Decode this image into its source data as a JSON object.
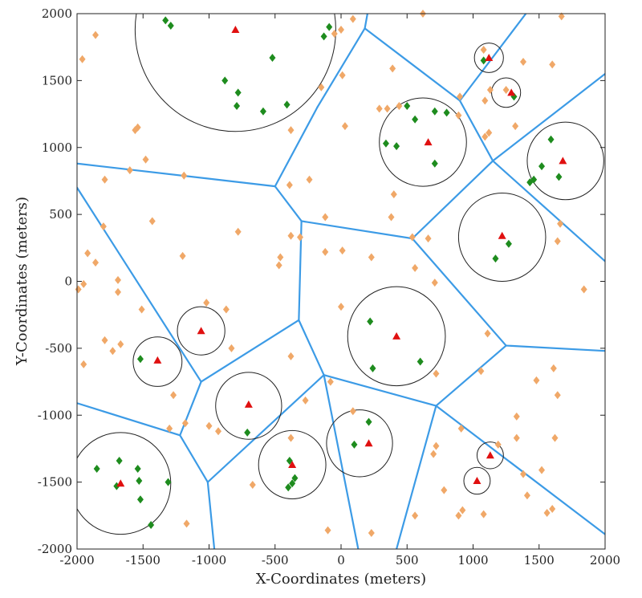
{
  "chart_data": {
    "type": "scatter",
    "title": "",
    "xlabel": "X-Coordinates (meters)",
    "ylabel": "Y-Coordinates (meters)",
    "xlim": [
      -2000,
      2000
    ],
    "ylim": [
      -2000,
      2000
    ],
    "xticks": [
      -2000,
      -1500,
      -1000,
      -500,
      0,
      500,
      1000,
      1500,
      2000
    ],
    "yticks": [
      -2000,
      -1500,
      -1000,
      -500,
      0,
      500,
      1000,
      1500,
      2000
    ],
    "grid": false,
    "legend": "none",
    "colors": {
      "voronoi": "#3c9be6",
      "circle": "#222222",
      "orange": "#f0a868",
      "green": "#1e8c1e",
      "red": "#e01010"
    },
    "voronoi_edges": [
      [
        [
          -2000,
          880
        ],
        [
          -500,
          710
        ]
      ],
      [
        [
          -500,
          710
        ],
        [
          -180,
          1300
        ]
      ],
      [
        [
          -180,
          1300
        ],
        [
          180,
          1890
        ]
      ],
      [
        [
          180,
          1890
        ],
        [
          200,
          2000
        ]
      ],
      [
        [
          180,
          1890
        ],
        [
          900,
          1350
        ]
      ],
      [
        [
          900,
          1350
        ],
        [
          1400,
          2000
        ]
      ],
      [
        [
          900,
          1350
        ],
        [
          1150,
          900
        ]
      ],
      [
        [
          1150,
          900
        ],
        [
          2000,
          1550
        ]
      ],
      [
        [
          1150,
          900
        ],
        [
          2000,
          150
        ]
      ],
      [
        [
          1150,
          900
        ],
        [
          540,
          320
        ]
      ],
      [
        [
          -500,
          710
        ],
        [
          -300,
          450
        ]
      ],
      [
        [
          -300,
          450
        ],
        [
          540,
          320
        ]
      ],
      [
        [
          540,
          320
        ],
        [
          1250,
          -480
        ]
      ],
      [
        [
          1250,
          -480
        ],
        [
          2000,
          -520
        ]
      ],
      [
        [
          1250,
          -480
        ],
        [
          720,
          -930
        ]
      ],
      [
        [
          -2000,
          700
        ],
        [
          -1060,
          -750
        ]
      ],
      [
        [
          -300,
          450
        ],
        [
          -320,
          -290
        ]
      ],
      [
        [
          -320,
          -290
        ],
        [
          -1060,
          -750
        ]
      ],
      [
        [
          -1060,
          -750
        ],
        [
          -1220,
          -1150
        ]
      ],
      [
        [
          -1220,
          -1150
        ],
        [
          -2000,
          -910
        ]
      ],
      [
        [
          -1220,
          -1150
        ],
        [
          -1010,
          -1500
        ]
      ],
      [
        [
          -1010,
          -1500
        ],
        [
          -960,
          -2000
        ]
      ],
      [
        [
          -1010,
          -1500
        ],
        [
          -130,
          -700
        ]
      ],
      [
        [
          -320,
          -290
        ],
        [
          -130,
          -700
        ]
      ],
      [
        [
          -130,
          -700
        ],
        [
          720,
          -930
        ]
      ],
      [
        [
          -130,
          -700
        ],
        [
          130,
          -2000
        ]
      ],
      [
        [
          720,
          -930
        ],
        [
          420,
          -2000
        ]
      ],
      [
        [
          720,
          -930
        ],
        [
          2000,
          -1890
        ]
      ]
    ],
    "circles": [
      {
        "x": -800,
        "y": 1880,
        "r": 760
      },
      {
        "x": 1120,
        "y": 1670,
        "r": 110
      },
      {
        "x": 1250,
        "y": 1410,
        "r": 110
      },
      {
        "x": 620,
        "y": 1040,
        "r": 330
      },
      {
        "x": 1700,
        "y": 900,
        "r": 290
      },
      {
        "x": 1220,
        "y": 330,
        "r": 330
      },
      {
        "x": 420,
        "y": -410,
        "r": 370
      },
      {
        "x": -1060,
        "y": -370,
        "r": 180
      },
      {
        "x": -1390,
        "y": -600,
        "r": 185
      },
      {
        "x": -700,
        "y": -930,
        "r": 250
      },
      {
        "x": -370,
        "y": -1370,
        "r": 255
      },
      {
        "x": 140,
        "y": -1210,
        "r": 250
      },
      {
        "x": 1130,
        "y": -1300,
        "r": 100
      },
      {
        "x": 1030,
        "y": -1490,
        "r": 100
      },
      {
        "x": -1670,
        "y": -1510,
        "r": 380
      }
    ],
    "red_triangles": [
      {
        "x": -800,
        "y": 1880
      },
      {
        "x": 1120,
        "y": 1670
      },
      {
        "x": 1290,
        "y": 1410
      },
      {
        "x": 660,
        "y": 1040
      },
      {
        "x": 1680,
        "y": 900
      },
      {
        "x": 1220,
        "y": 340
      },
      {
        "x": 420,
        "y": -410
      },
      {
        "x": -1060,
        "y": -370
      },
      {
        "x": -1390,
        "y": -590
      },
      {
        "x": -700,
        "y": -920
      },
      {
        "x": -370,
        "y": -1370
      },
      {
        "x": 210,
        "y": -1210
      },
      {
        "x": 1130,
        "y": -1300
      },
      {
        "x": 1030,
        "y": -1490
      },
      {
        "x": -1670,
        "y": -1510
      }
    ],
    "green_diamonds": [
      {
        "x": -1330,
        "y": 1950
      },
      {
        "x": -1290,
        "y": 1910
      },
      {
        "x": -130,
        "y": 1830
      },
      {
        "x": -90,
        "y": 1900
      },
      {
        "x": -520,
        "y": 1670
      },
      {
        "x": -880,
        "y": 1500
      },
      {
        "x": -780,
        "y": 1410
      },
      {
        "x": -790,
        "y": 1310
      },
      {
        "x": -590,
        "y": 1270
      },
      {
        "x": -410,
        "y": 1320
      },
      {
        "x": 1080,
        "y": 1650
      },
      {
        "x": 1310,
        "y": 1380
      },
      {
        "x": 500,
        "y": 1310
      },
      {
        "x": 560,
        "y": 1210
      },
      {
        "x": 710,
        "y": 1270
      },
      {
        "x": 800,
        "y": 1260
      },
      {
        "x": 340,
        "y": 1030
      },
      {
        "x": 420,
        "y": 1010
      },
      {
        "x": 710,
        "y": 880
      },
      {
        "x": 1590,
        "y": 1060
      },
      {
        "x": 1520,
        "y": 860
      },
      {
        "x": 1460,
        "y": 760
      },
      {
        "x": 1430,
        "y": 740
      },
      {
        "x": 1650,
        "y": 780
      },
      {
        "x": 1270,
        "y": 280
      },
      {
        "x": 1170,
        "y": 170
      },
      {
        "x": 220,
        "y": -300
      },
      {
        "x": 600,
        "y": -600
      },
      {
        "x": 240,
        "y": -650
      },
      {
        "x": -1520,
        "y": -580
      },
      {
        "x": -710,
        "y": -1130
      },
      {
        "x": 210,
        "y": -1050
      },
      {
        "x": 100,
        "y": -1220
      },
      {
        "x": -1850,
        "y": -1400
      },
      {
        "x": -1680,
        "y": -1340
      },
      {
        "x": -1540,
        "y": -1400
      },
      {
        "x": -1530,
        "y": -1490
      },
      {
        "x": -1700,
        "y": -1530
      },
      {
        "x": -1310,
        "y": -1500
      },
      {
        "x": -1520,
        "y": -1630
      },
      {
        "x": -1440,
        "y": -1820
      },
      {
        "x": -390,
        "y": -1340
      },
      {
        "x": -350,
        "y": -1470
      },
      {
        "x": -370,
        "y": -1510
      },
      {
        "x": -400,
        "y": -1540
      }
    ],
    "orange_diamonds": [
      {
        "x": -1960,
        "y": 1660
      },
      {
        "x": -1860,
        "y": 1840
      },
      {
        "x": -1560,
        "y": 1130
      },
      {
        "x": -1540,
        "y": 1150
      },
      {
        "x": -1480,
        "y": 910
      },
      {
        "x": -1600,
        "y": 830
      },
      {
        "x": -1790,
        "y": 760
      },
      {
        "x": -1190,
        "y": 790
      },
      {
        "x": -1430,
        "y": 450
      },
      {
        "x": -1800,
        "y": 410
      },
      {
        "x": -1920,
        "y": 210
      },
      {
        "x": -1860,
        "y": 140
      },
      {
        "x": -1690,
        "y": 10
      },
      {
        "x": -1950,
        "y": -20
      },
      {
        "x": -1990,
        "y": -60
      },
      {
        "x": -1690,
        "y": -80
      },
      {
        "x": -1510,
        "y": -210
      },
      {
        "x": -1200,
        "y": 190
      },
      {
        "x": -780,
        "y": 370
      },
      {
        "x": -460,
        "y": 180
      },
      {
        "x": -470,
        "y": 120
      },
      {
        "x": -1020,
        "y": -160
      },
      {
        "x": -870,
        "y": -210
      },
      {
        "x": -830,
        "y": -500
      },
      {
        "x": -1790,
        "y": -440
      },
      {
        "x": -1730,
        "y": -520
      },
      {
        "x": -1670,
        "y": -470
      },
      {
        "x": -1950,
        "y": -620
      },
      {
        "x": -390,
        "y": 720
      },
      {
        "x": -380,
        "y": 340
      },
      {
        "x": -310,
        "y": 330
      },
      {
        "x": -240,
        "y": 760
      },
      {
        "x": -120,
        "y": 480
      },
      {
        "x": -120,
        "y": 220
      },
      {
        "x": 10,
        "y": 230
      },
      {
        "x": 230,
        "y": 180
      },
      {
        "x": -380,
        "y": -560
      },
      {
        "x": -270,
        "y": -890
      },
      {
        "x": -380,
        "y": -1170
      },
      {
        "x": 0,
        "y": -190
      },
      {
        "x": -80,
        "y": -750
      },
      {
        "x": 90,
        "y": -970
      },
      {
        "x": -1270,
        "y": -850
      },
      {
        "x": -1300,
        "y": -1100
      },
      {
        "x": -1180,
        "y": -1060
      },
      {
        "x": -1000,
        "y": -1080
      },
      {
        "x": -930,
        "y": -1120
      },
      {
        "x": -1170,
        "y": -1810
      },
      {
        "x": -670,
        "y": -1520
      },
      {
        "x": -100,
        "y": -1860
      },
      {
        "x": 230,
        "y": -1880
      },
      {
        "x": 560,
        "y": -1750
      },
      {
        "x": 700,
        "y": -1290
      },
      {
        "x": 720,
        "y": -1230
      },
      {
        "x": 780,
        "y": -1560
      },
      {
        "x": 890,
        "y": -1750
      },
      {
        "x": 920,
        "y": -1710
      },
      {
        "x": 1080,
        "y": -1740
      },
      {
        "x": 1190,
        "y": -1220
      },
      {
        "x": 1380,
        "y": -1440
      },
      {
        "x": 1410,
        "y": -1600
      },
      {
        "x": 1520,
        "y": -1410
      },
      {
        "x": 1560,
        "y": -1730
      },
      {
        "x": 1600,
        "y": -1700
      },
      {
        "x": 1330,
        "y": -1010
      },
      {
        "x": 1330,
        "y": -1170
      },
      {
        "x": 1620,
        "y": -1170
      },
      {
        "x": 1640,
        "y": -850
      },
      {
        "x": 1480,
        "y": -740
      },
      {
        "x": 1610,
        "y": -650
      },
      {
        "x": 1840,
        "y": -60
      },
      {
        "x": 1660,
        "y": 430
      },
      {
        "x": 1640,
        "y": 300
      },
      {
        "x": 540,
        "y": 330
      },
      {
        "x": 660,
        "y": 320
      },
      {
        "x": 560,
        "y": 100
      },
      {
        "x": 710,
        "y": -10
      },
      {
        "x": 720,
        "y": -690
      },
      {
        "x": 1060,
        "y": -670
      },
      {
        "x": 1110,
        "y": -390
      },
      {
        "x": 910,
        "y": -1100
      },
      {
        "x": 620,
        "y": 2000
      },
      {
        "x": 890,
        "y": 1240
      },
      {
        "x": 1080,
        "y": 1730
      },
      {
        "x": 1090,
        "y": 1350
      },
      {
        "x": 1130,
        "y": 1430
      },
      {
        "x": 1120,
        "y": 1110
      },
      {
        "x": 1090,
        "y": 1080
      },
      {
        "x": 1320,
        "y": 1160
      },
      {
        "x": 1380,
        "y": 1640
      },
      {
        "x": 1600,
        "y": 1620
      },
      {
        "x": 1670,
        "y": 1980
      },
      {
        "x": 1250,
        "y": 1430
      },
      {
        "x": 0,
        "y": 1880
      },
      {
        "x": -50,
        "y": 1850
      },
      {
        "x": 10,
        "y": 1540
      },
      {
        "x": 30,
        "y": 1160
      },
      {
        "x": 290,
        "y": 1290
      },
      {
        "x": 350,
        "y": 1290
      },
      {
        "x": 390,
        "y": 1590
      },
      {
        "x": 440,
        "y": 1310
      },
      {
        "x": 400,
        "y": 650
      },
      {
        "x": 380,
        "y": 480
      },
      {
        "x": 900,
        "y": 1380
      },
      {
        "x": -380,
        "y": 1130
      },
      {
        "x": -150,
        "y": 1450
      },
      {
        "x": 90,
        "y": 1960
      }
    ]
  }
}
